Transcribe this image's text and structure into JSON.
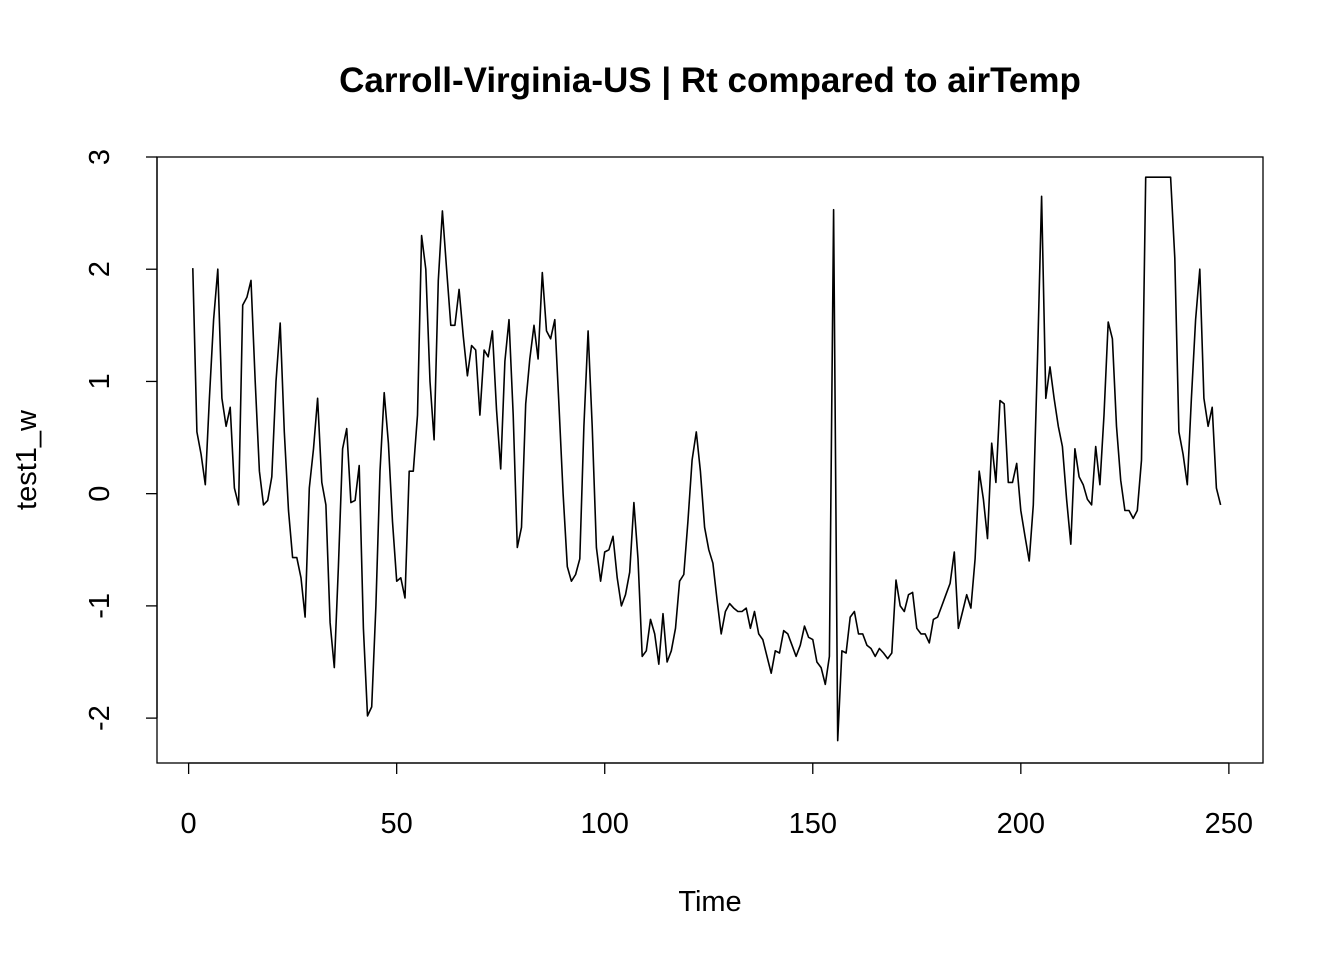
{
  "chart_data": {
    "type": "line",
    "title": "Carroll-Virginia-US | Rt compared to airTemp",
    "xlabel": "Time",
    "ylabel": "test1_w",
    "xlim": [
      -7.6,
      258.2
    ],
    "ylim": [
      -2.4,
      3.0
    ],
    "xticks": [
      0,
      50,
      100,
      150,
      200,
      250
    ],
    "yticks": [
      -2,
      -1,
      0,
      1,
      2,
      3
    ],
    "grid": false,
    "legend": "none",
    "line_color": "#000000",
    "series": [
      {
        "x": [
          1,
          2,
          3,
          4,
          5,
          6,
          7,
          8,
          9,
          10,
          11,
          12,
          13,
          14,
          15,
          16,
          17,
          18,
          19,
          20,
          21,
          22,
          23,
          24,
          25,
          26,
          27,
          28,
          29,
          30,
          31,
          32,
          33,
          34,
          35,
          36,
          37,
          38,
          39,
          40,
          41,
          42,
          43,
          44,
          45,
          46,
          47,
          48,
          49,
          50,
          51,
          52,
          53,
          54,
          55,
          56,
          57,
          58,
          59,
          60,
          61,
          62,
          63,
          64,
          65,
          66,
          67,
          68,
          69,
          70,
          71,
          72,
          73,
          74,
          75,
          76,
          77,
          78,
          79,
          80,
          81,
          82,
          83,
          84,
          85,
          86,
          87,
          88,
          89,
          90,
          91,
          92,
          93,
          94,
          95,
          96,
          97,
          98,
          99,
          100,
          101,
          102,
          103,
          104,
          105,
          106,
          107,
          108,
          109,
          110,
          111,
          112,
          113,
          114,
          115,
          116,
          117,
          118,
          119,
          120,
          121,
          122,
          123,
          124,
          125,
          126,
          127,
          128,
          129,
          130,
          131,
          132,
          133,
          134,
          135,
          136,
          137,
          138,
          139,
          140,
          141,
          142,
          143,
          144,
          145,
          146,
          147,
          148,
          149,
          150,
          151,
          152,
          153,
          154,
          155,
          156,
          157,
          158,
          159,
          160,
          161,
          162,
          163,
          164,
          165,
          166,
          167,
          168,
          169,
          170,
          171,
          172,
          173,
          174,
          175,
          176,
          177,
          178,
          179,
          180,
          181,
          182,
          183,
          184,
          185,
          186,
          187,
          188,
          189,
          190,
          191,
          192,
          193,
          194,
          195,
          196,
          197,
          198,
          199,
          200,
          201,
          202,
          203,
          204,
          205,
          206,
          207,
          208,
          209,
          210,
          211,
          212,
          213,
          214,
          215,
          216,
          217,
          218,
          219,
          220,
          221,
          222,
          223,
          224,
          225,
          226,
          227,
          228,
          229,
          230,
          231,
          232,
          233,
          234,
          235,
          236,
          237,
          238,
          239,
          240,
          241,
          242,
          243,
          244,
          245,
          246,
          247,
          248
        ],
        "values": [
          2.01,
          0.55,
          0.35,
          0.08,
          0.85,
          1.55,
          2.0,
          0.85,
          0.6,
          0.77,
          0.05,
          -0.1,
          1.68,
          1.75,
          1.9,
          1.0,
          0.2,
          -0.1,
          -0.06,
          0.15,
          1.0,
          1.52,
          0.55,
          -0.15,
          -0.57,
          -0.57,
          -0.75,
          -1.1,
          0.05,
          0.4,
          0.85,
          0.1,
          -0.1,
          -1.15,
          -1.55,
          -0.65,
          0.4,
          0.58,
          -0.08,
          -0.06,
          0.25,
          -1.2,
          -1.98,
          -1.9,
          -1.0,
          0.2,
          0.9,
          0.45,
          -0.25,
          -0.78,
          -0.75,
          -0.93,
          0.2,
          0.2,
          0.7,
          2.3,
          2.0,
          1.0,
          0.48,
          1.9,
          2.52,
          2.0,
          1.5,
          1.5,
          1.82,
          1.4,
          1.05,
          1.32,
          1.28,
          0.7,
          1.28,
          1.22,
          1.45,
          0.75,
          0.22,
          1.18,
          1.55,
          0.7,
          -0.48,
          -0.3,
          0.8,
          1.2,
          1.5,
          1.2,
          1.97,
          1.45,
          1.38,
          1.55,
          0.78,
          0.0,
          -0.65,
          -0.78,
          -0.72,
          -0.58,
          0.6,
          1.45,
          0.6,
          -0.48,
          -0.78,
          -0.52,
          -0.5,
          -0.38,
          -0.75,
          -1.0,
          -0.9,
          -0.7,
          -0.08,
          -0.58,
          -1.45,
          -1.4,
          -1.12,
          -1.25,
          -1.52,
          -1.07,
          -1.5,
          -1.4,
          -1.2,
          -0.78,
          -0.72,
          -0.25,
          0.3,
          0.55,
          0.2,
          -0.3,
          -0.5,
          -0.62,
          -0.95,
          -1.25,
          -1.05,
          -0.98,
          -1.02,
          -1.05,
          -1.05,
          -1.02,
          -1.2,
          -1.05,
          -1.25,
          -1.3,
          -1.45,
          -1.6,
          -1.4,
          -1.42,
          -1.22,
          -1.25,
          -1.35,
          -1.45,
          -1.35,
          -1.18,
          -1.28,
          -1.3,
          -1.5,
          -1.55,
          -1.7,
          -1.45,
          2.53,
          -2.2,
          -1.4,
          -1.42,
          -1.1,
          -1.05,
          -1.25,
          -1.25,
          -1.35,
          -1.38,
          -1.45,
          -1.38,
          -1.42,
          -1.47,
          -1.42,
          -0.77,
          -1.0,
          -1.05,
          -0.9,
          -0.88,
          -1.2,
          -1.25,
          -1.25,
          -1.33,
          -1.12,
          -1.1,
          -1.0,
          -0.9,
          -0.8,
          -0.52,
          -1.2,
          -1.05,
          -0.9,
          -1.02,
          -0.58,
          0.2,
          -0.05,
          -0.4,
          0.45,
          0.1,
          0.83,
          0.8,
          0.1,
          0.1,
          0.27,
          -0.15,
          -0.38,
          -0.6,
          -0.1,
          1.2,
          2.65,
          0.85,
          1.13,
          0.85,
          0.6,
          0.42,
          -0.05,
          -0.45,
          0.4,
          0.15,
          0.08,
          -0.05,
          -0.1,
          0.42,
          0.08,
          0.7,
          1.53,
          1.38,
          0.6,
          0.12,
          -0.15,
          -0.15,
          -0.22,
          -0.15,
          0.3,
          2.82,
          2.82,
          2.82,
          2.82,
          2.82,
          2.82,
          2.82,
          2.1,
          0.55,
          0.35,
          0.08,
          0.85,
          1.55,
          2.0,
          0.85,
          0.6,
          0.77,
          0.05,
          -0.1
        ]
      }
    ]
  }
}
